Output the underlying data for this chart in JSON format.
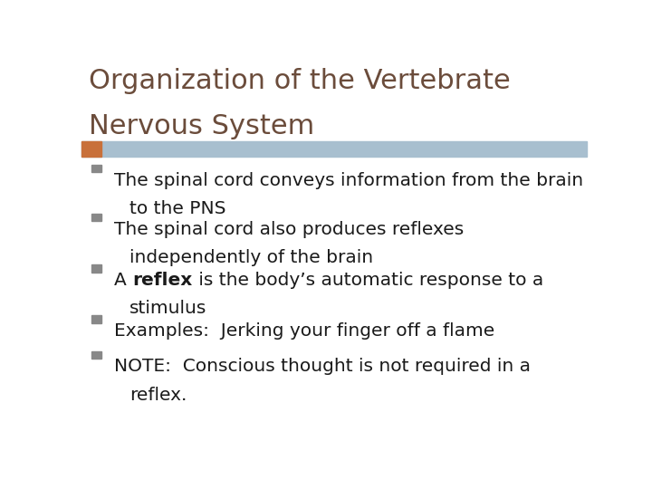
{
  "title_line1": "Organization of the Vertebrate",
  "title_line2": "Nervous System",
  "title_color": "#6B4C3B",
  "background_color": "#FFFFFF",
  "header_bar_color": "#A8BFCF",
  "accent_bar_color": "#C8703A",
  "bullet_points": [
    {
      "line1": "The spinal cord conveys information from the brain",
      "line2": "to the PNS",
      "parts": [
        {
          "text": "The spinal cord conveys information from the brain",
          "bold": false
        },
        {
          "text": "to the PNS",
          "bold": false,
          "indent": true
        }
      ]
    },
    {
      "line1": "The spinal cord also produces reflexes",
      "line2": "independently of the brain",
      "parts": [
        {
          "text": "The spinal cord also produces reflexes",
          "bold": false
        },
        {
          "text": "independently of the brain",
          "bold": false,
          "indent": true
        }
      ]
    },
    {
      "line1_parts": [
        {
          "text": "A ",
          "bold": false
        },
        {
          "text": "reflex",
          "bold": true
        },
        {
          "text": " is the body’s automatic response to a",
          "bold": false
        }
      ],
      "line2": "stimulus",
      "parts": []
    },
    {
      "line1": "Examples:  Jerking your finger off a flame",
      "line2": null,
      "parts": [
        {
          "text": "Examples:  Jerking your finger off a flame",
          "bold": false
        }
      ]
    },
    {
      "line1": "NOTE:  Conscious thought is not required in a",
      "line2": "reflex.",
      "parts": [
        {
          "text": "NOTE:  Conscious thought is not required in a",
          "bold": false
        },
        {
          "text": "reflex.",
          "bold": false,
          "indent": true
        }
      ]
    }
  ],
  "text_color": "#1A1A1A",
  "bullet_square_color": "#888888",
  "font_size_title": 22,
  "font_size_body": 14.5
}
